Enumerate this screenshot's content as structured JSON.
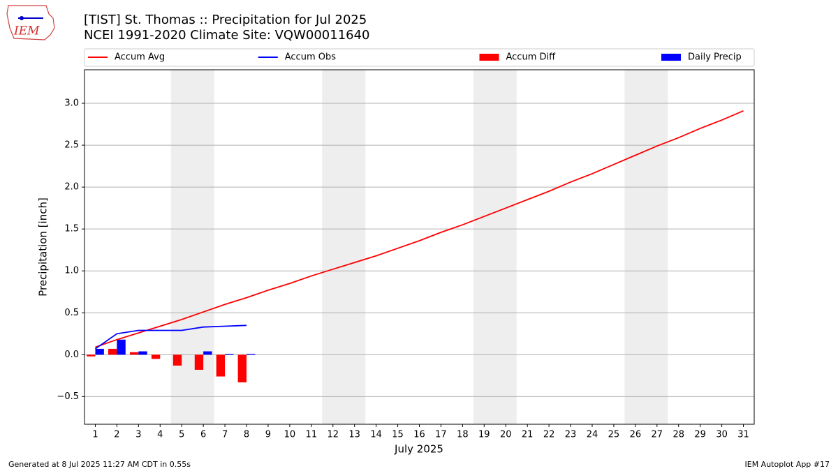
{
  "chart_data": {
    "type": "combo",
    "logo": "IEM",
    "title": "[TIST] St. Thomas :: Precipitation for Jul 2025",
    "subtitle": "NCEI 1991-2020 Climate Site: VQW00011640",
    "xlabel": "July 2025",
    "ylabel": "Precipitation [inch]",
    "footer_left": "Generated at 8 Jul 2025 11:27 AM CDT in 0.55s",
    "footer_right": "IEM Autoplot App #17",
    "x": [
      1,
      2,
      3,
      4,
      5,
      6,
      7,
      8,
      9,
      10,
      11,
      12,
      13,
      14,
      15,
      16,
      17,
      18,
      19,
      20,
      21,
      22,
      23,
      24,
      25,
      26,
      27,
      28,
      29,
      30,
      31
    ],
    "xlim": [
      0.5,
      31.5
    ],
    "xticks": [
      1,
      2,
      3,
      4,
      5,
      6,
      7,
      8,
      9,
      10,
      11,
      12,
      13,
      14,
      15,
      16,
      17,
      18,
      19,
      20,
      21,
      22,
      23,
      24,
      25,
      26,
      27,
      28,
      29,
      30,
      31
    ],
    "ylim": [
      -0.83,
      3.4
    ],
    "yticks": [
      {
        "value": -0.5,
        "label": "−0.5"
      },
      {
        "value": 0,
        "label": "0.0"
      },
      {
        "value": 0.5,
        "label": "0.5"
      },
      {
        "value": 1,
        "label": "1.0"
      },
      {
        "value": 1.5,
        "label": "1.5"
      },
      {
        "value": 2,
        "label": "2.0"
      },
      {
        "value": 2.5,
        "label": "2.5"
      },
      {
        "value": 3,
        "label": "3.0"
      }
    ],
    "grid": true,
    "shaded_spans": [
      [
        4.5,
        6.5
      ],
      [
        11.5,
        13.5
      ],
      [
        18.5,
        20.5
      ],
      [
        25.5,
        27.5
      ]
    ],
    "shade_color": "#eeeeee",
    "legend": "top",
    "series": [
      {
        "name": "Accum Avg",
        "kind": "line",
        "color": "#ff0000",
        "values": [
          0.09,
          0.18,
          0.26,
          0.34,
          0.42,
          0.51,
          0.6,
          0.68,
          0.77,
          0.85,
          0.94,
          1.02,
          1.1,
          1.18,
          1.27,
          1.36,
          1.46,
          1.55,
          1.65,
          1.75,
          1.85,
          1.95,
          2.06,
          2.16,
          2.27,
          2.38,
          2.49,
          2.59,
          2.7,
          2.8,
          2.91
        ]
      },
      {
        "name": "Accum Obs",
        "kind": "line",
        "color": "#0000ff",
        "values": [
          0.07,
          0.25,
          0.29,
          0.29,
          0.29,
          0.33,
          0.34,
          0.35,
          null,
          null,
          null,
          null,
          null,
          null,
          null,
          null,
          null,
          null,
          null,
          null,
          null,
          null,
          null,
          null,
          null,
          null,
          null,
          null,
          null,
          null,
          null
        ]
      },
      {
        "name": "Accum Diff",
        "kind": "bar",
        "color": "#ff0000",
        "values": [
          -0.02,
          0.07,
          0.03,
          -0.05,
          -0.13,
          -0.18,
          -0.26,
          -0.33,
          null,
          null,
          null,
          null,
          null,
          null,
          null,
          null,
          null,
          null,
          null,
          null,
          null,
          null,
          null,
          null,
          null,
          null,
          null,
          null,
          null,
          null,
          null
        ]
      },
      {
        "name": "Daily Precip",
        "kind": "bar",
        "color": "#0000ff",
        "values": [
          0.07,
          0.18,
          0.04,
          0,
          0,
          0.04,
          0.01,
          0.01,
          null,
          null,
          null,
          null,
          null,
          null,
          null,
          null,
          null,
          null,
          null,
          null,
          null,
          null,
          null,
          null,
          null,
          null,
          null,
          null,
          null,
          null,
          null
        ]
      }
    ]
  }
}
